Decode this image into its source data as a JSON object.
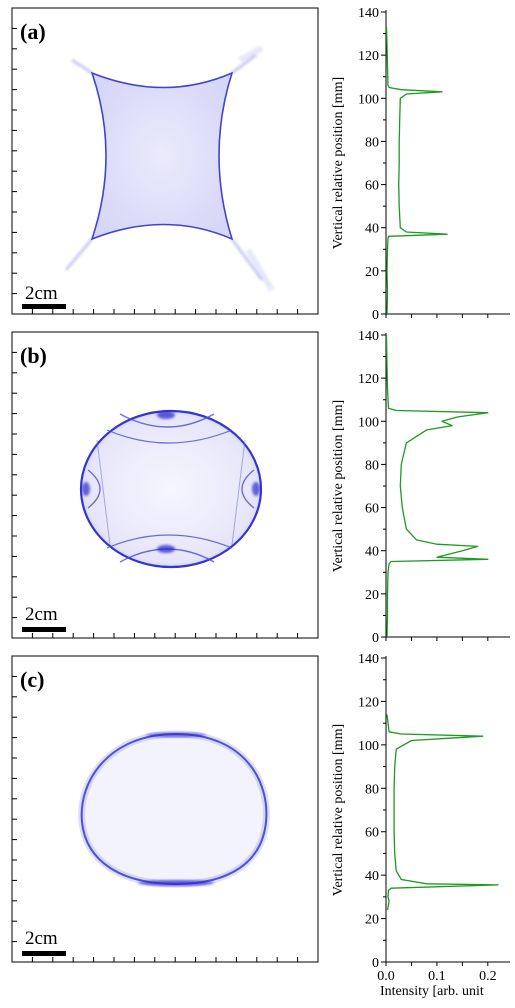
{
  "figure": {
    "panels": [
      {
        "label": "(a)",
        "scale_bar": "2cm",
        "shape": "astroid"
      },
      {
        "label": "(b)",
        "scale_bar": "2cm",
        "shape": "caustic-ellipse"
      },
      {
        "label": "(c)",
        "scale_bar": "2cm",
        "shape": "ellipse"
      }
    ]
  },
  "colors": {
    "image_ink": "#3a3ad6",
    "profile": "#1e9a1e",
    "axis": "#000000"
  },
  "chart_data": [
    {
      "type": "line",
      "panel": "(a)",
      "ylabel": "Vertical relative position [mm]",
      "xlabel": "",
      "ylim": [
        0,
        140
      ],
      "xlim": [
        0,
        0.22
      ],
      "yticks": [
        0,
        20,
        40,
        60,
        80,
        100,
        120,
        140
      ],
      "xticks": [],
      "series": [
        {
          "points": [
            [
              0.002,
              0
            ],
            [
              0.003,
              10
            ],
            [
              0.002,
              20
            ],
            [
              0.003,
              30
            ],
            [
              0.004,
              35
            ],
            [
              0.005,
              36
            ],
            [
              0.12,
              37
            ],
            [
              0.04,
              38
            ],
            [
              0.028,
              40
            ],
            [
              0.026,
              50
            ],
            [
              0.025,
              60
            ],
            [
              0.026,
              70
            ],
            [
              0.026,
              80
            ],
            [
              0.027,
              90
            ],
            [
              0.028,
              100
            ],
            [
              0.04,
              102
            ],
            [
              0.11,
              103
            ],
            [
              0.03,
              104
            ],
            [
              0.006,
              105
            ],
            [
              0.004,
              106
            ],
            [
              0.003,
              115
            ],
            [
              0.002,
              125
            ],
            [
              0.001,
              133
            ]
          ]
        }
      ]
    },
    {
      "type": "line",
      "panel": "(b)",
      "ylabel": "Vertical relative position [mm]",
      "xlabel": "",
      "ylim": [
        0,
        140
      ],
      "xlim": [
        0,
        0.22
      ],
      "yticks": [
        0,
        20,
        40,
        60,
        80,
        100,
        120,
        140
      ],
      "xticks": [],
      "series": [
        {
          "points": [
            [
              0.002,
              0
            ],
            [
              0.003,
              10
            ],
            [
              0.003,
              20
            ],
            [
              0.004,
              30
            ],
            [
              0.006,
              34
            ],
            [
              0.01,
              35
            ],
            [
              0.2,
              36
            ],
            [
              0.1,
              37
            ],
            [
              0.15,
              40
            ],
            [
              0.18,
              42
            ],
            [
              0.1,
              43
            ],
            [
              0.06,
              45
            ],
            [
              0.04,
              50
            ],
            [
              0.032,
              60
            ],
            [
              0.028,
              70
            ],
            [
              0.03,
              80
            ],
            [
              0.04,
              90
            ],
            [
              0.08,
              96
            ],
            [
              0.13,
              98
            ],
            [
              0.11,
              100
            ],
            [
              0.14,
              102
            ],
            [
              0.2,
              104
            ],
            [
              0.02,
              105
            ],
            [
              0.005,
              106
            ],
            [
              0.003,
              115
            ],
            [
              0.002,
              125
            ],
            [
              0.001,
              140
            ]
          ]
        }
      ]
    },
    {
      "type": "line",
      "panel": "(c)",
      "ylabel": "Vertical relative position [mm]",
      "xlabel": "Intensity [arb. unit",
      "ylim": [
        0,
        140
      ],
      "xlim": [
        0,
        0.22
      ],
      "yticks": [
        0,
        20,
        40,
        60,
        80,
        100,
        120,
        140
      ],
      "xticks": [
        0.0,
        0.1,
        0.2
      ],
      "xticklabels": [
        "0.0",
        "0.1",
        "0.2"
      ],
      "series": [
        {
          "points": [
            [
              0.003,
              24
            ],
            [
              0.006,
              28
            ],
            [
              0.004,
              30
            ],
            [
              0.005,
              33
            ],
            [
              0.01,
              34
            ],
            [
              0.22,
              35.5
            ],
            [
              0.08,
              36
            ],
            [
              0.03,
              38
            ],
            [
              0.02,
              42
            ],
            [
              0.017,
              50
            ],
            [
              0.016,
              60
            ],
            [
              0.016,
              70
            ],
            [
              0.016,
              80
            ],
            [
              0.017,
              90
            ],
            [
              0.02,
              98
            ],
            [
              0.05,
              102
            ],
            [
              0.12,
              103
            ],
            [
              0.19,
              104
            ],
            [
              0.03,
              105
            ],
            [
              0.006,
              106
            ],
            [
              0.004,
              110
            ],
            [
              0.002,
              114
            ]
          ]
        }
      ]
    }
  ]
}
